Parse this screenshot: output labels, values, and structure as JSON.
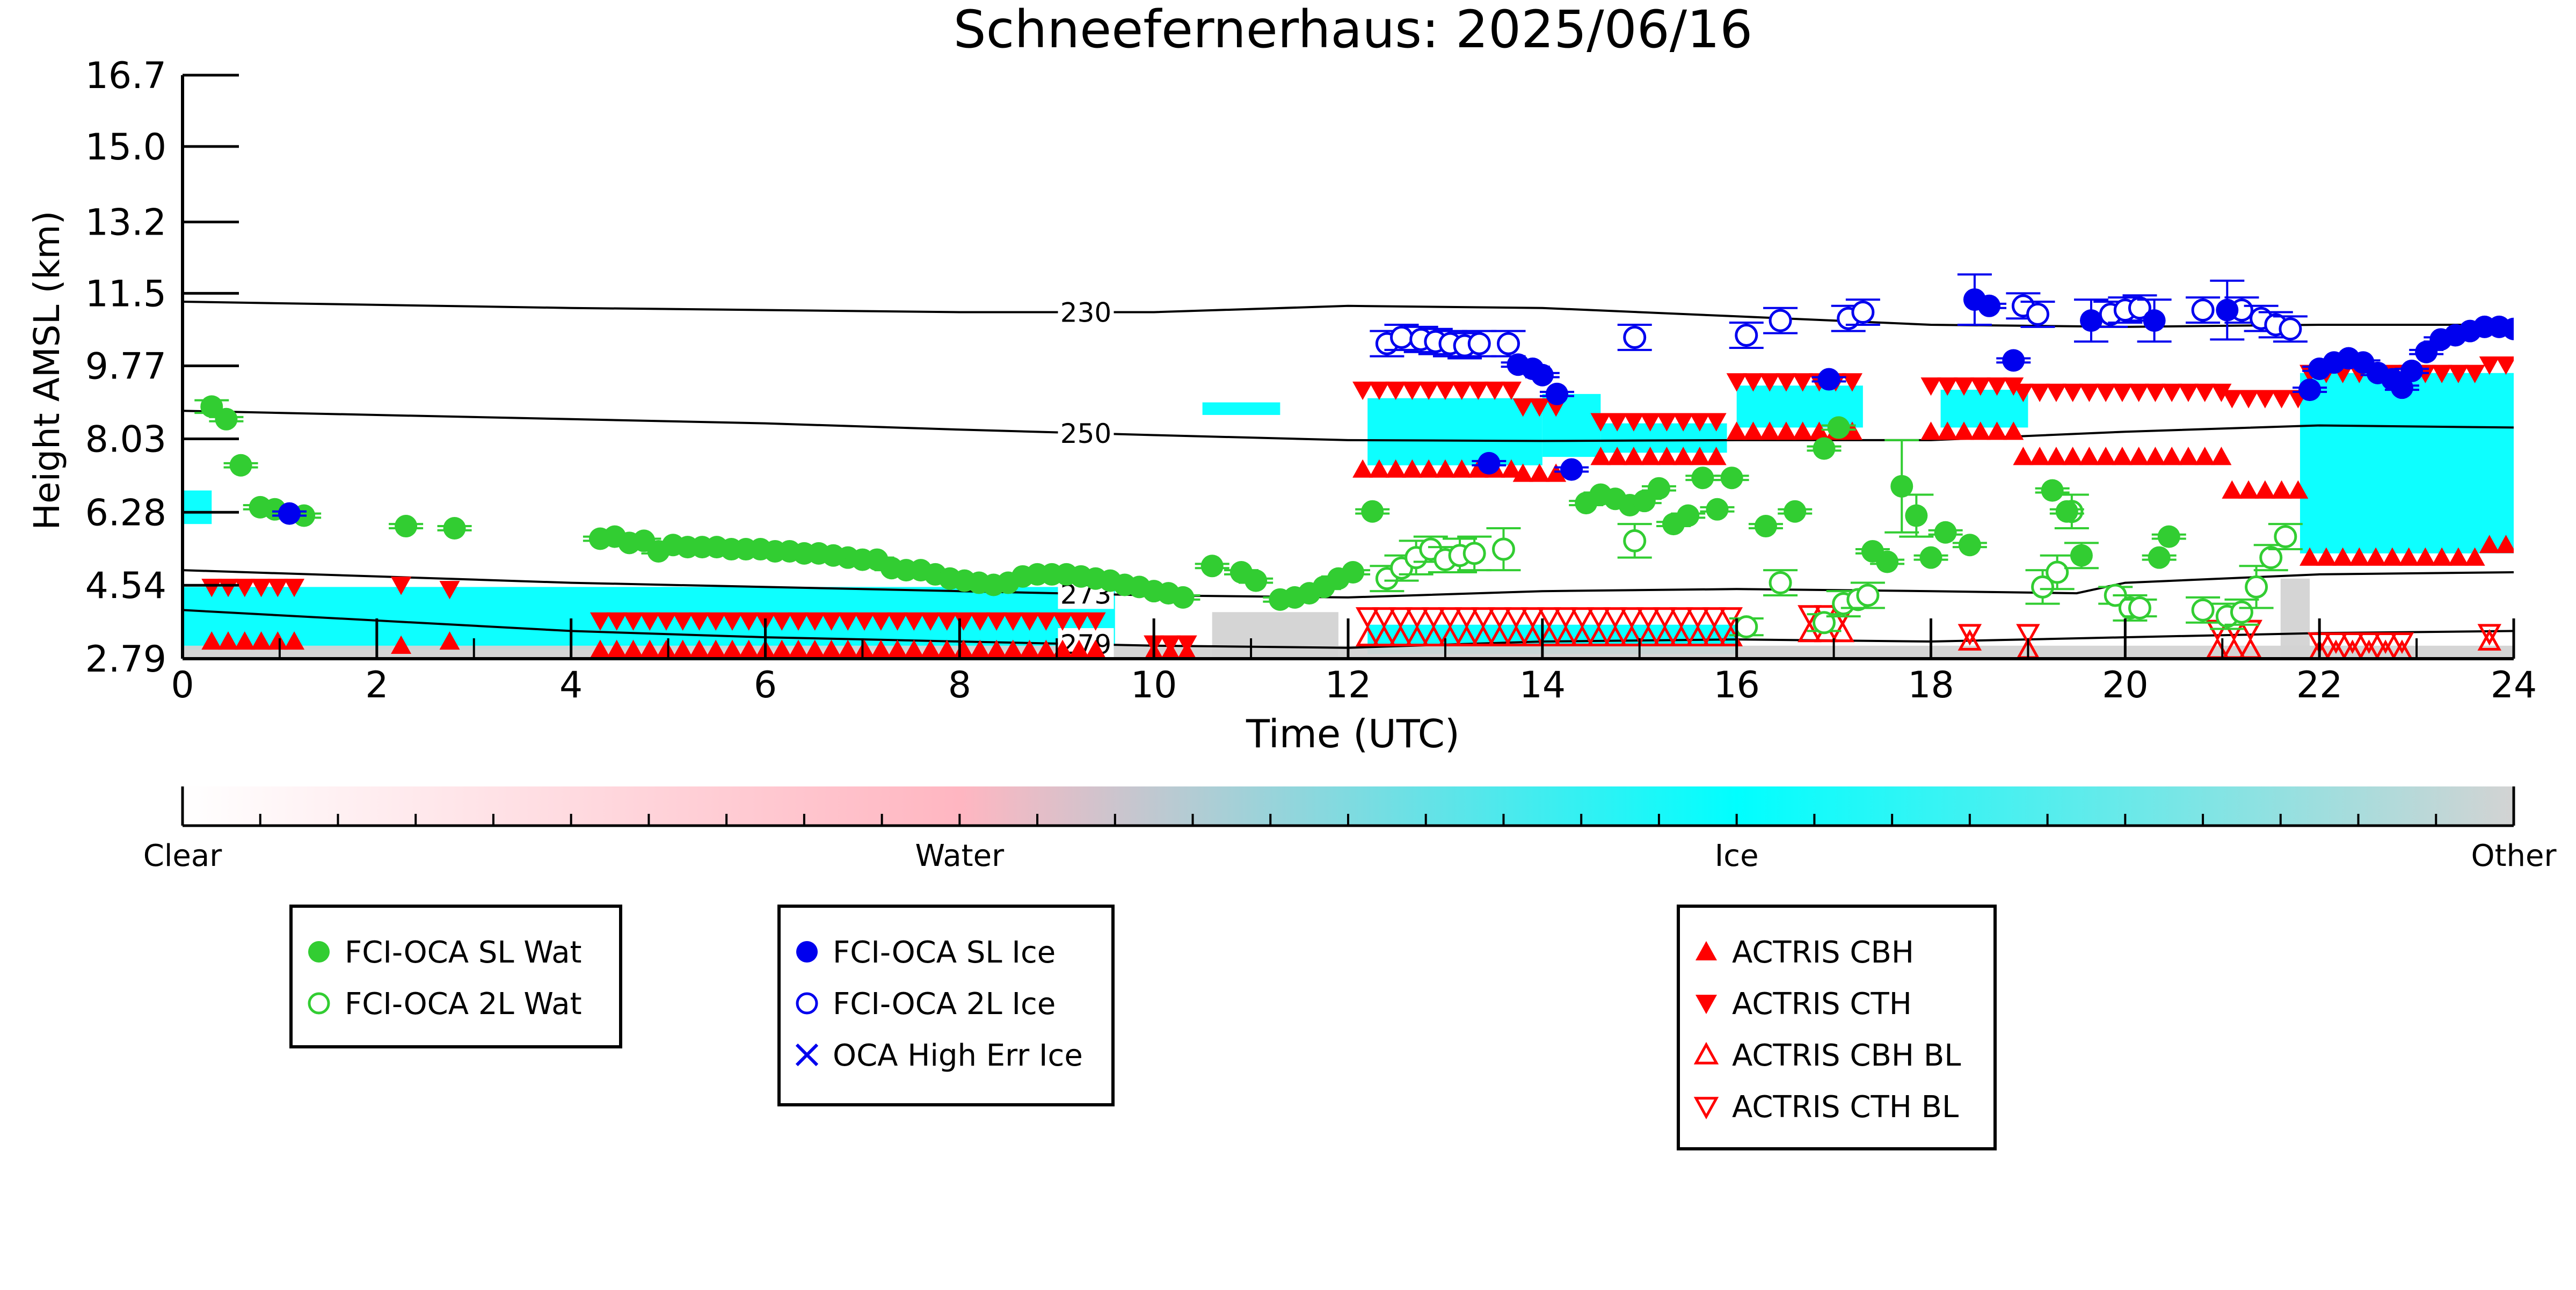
{
  "chart_data": {
    "type": "scatter",
    "title": "Schneefernerhaus: 2025/06/16",
    "xlabel": "Time (UTC)",
    "ylabel": "Height AMSL (km)",
    "xlim": [
      0,
      24
    ],
    "ylim": [
      2.79,
      16.7
    ],
    "xticks": [
      "0",
      "2",
      "4",
      "6",
      "8",
      "10",
      "12",
      "14",
      "16",
      "18",
      "20",
      "22",
      "24"
    ],
    "yticks": [
      "2.79",
      "4.54",
      "6.28",
      "8.03",
      "9.77",
      "11.5",
      "13.2",
      "15.0",
      "16.7"
    ],
    "isotherms": [
      {
        "label": "230",
        "label_x": 9.3,
        "points": [
          [
            0,
            11.3
          ],
          [
            4,
            11.15
          ],
          [
            8,
            11.05
          ],
          [
            10,
            11.05
          ],
          [
            12,
            11.2
          ],
          [
            14,
            11.15
          ],
          [
            16,
            10.95
          ],
          [
            18,
            10.75
          ],
          [
            20,
            10.7
          ],
          [
            22,
            10.75
          ],
          [
            24,
            10.75
          ]
        ]
      },
      {
        "label": "250",
        "label_x": 9.3,
        "points": [
          [
            0,
            8.7
          ],
          [
            2,
            8.6
          ],
          [
            4,
            8.5
          ],
          [
            6,
            8.4
          ],
          [
            8,
            8.25
          ],
          [
            10,
            8.12
          ],
          [
            12,
            8.0
          ],
          [
            14,
            7.98
          ],
          [
            16,
            8.0
          ],
          [
            18,
            8.0
          ],
          [
            20,
            8.2
          ],
          [
            22,
            8.35
          ],
          [
            24,
            8.3
          ]
        ]
      },
      {
        "label": "273",
        "label_x": 9.3,
        "points": [
          [
            0,
            4.9
          ],
          [
            2,
            4.75
          ],
          [
            4,
            4.6
          ],
          [
            6,
            4.5
          ],
          [
            8,
            4.4
          ],
          [
            10,
            4.3
          ],
          [
            12,
            4.25
          ],
          [
            14,
            4.4
          ],
          [
            16,
            4.45
          ],
          [
            18,
            4.4
          ],
          [
            19.5,
            4.35
          ],
          [
            20,
            4.6
          ],
          [
            22,
            4.8
          ],
          [
            24,
            4.85
          ]
        ]
      },
      {
        "label": "279",
        "label_x": 9.3,
        "points": [
          [
            0,
            3.95
          ],
          [
            2,
            3.7
          ],
          [
            4,
            3.45
          ],
          [
            6,
            3.3
          ],
          [
            8,
            3.2
          ],
          [
            10,
            3.1
          ],
          [
            12,
            3.05
          ],
          [
            14,
            3.2
          ],
          [
            16,
            3.25
          ],
          [
            18,
            3.2
          ],
          [
            20,
            3.3
          ],
          [
            22,
            3.4
          ],
          [
            24,
            3.45
          ]
        ]
      }
    ],
    "classification_colorbar": {
      "labels": [
        "Clear",
        "Water",
        "Ice",
        "Other"
      ],
      "colors": [
        "#ffffff",
        "#ffb6c1",
        "#00ffff",
        "#d3d3d3"
      ]
    },
    "series": [
      {
        "name": "FCI-OCA SL Wat",
        "marker": "filled-circle",
        "color": "#32cd32",
        "x": [
          0.3,
          0.45,
          0.6,
          0.8,
          0.95,
          1.25,
          2.3,
          2.8,
          4.3,
          4.45,
          4.6,
          4.75,
          4.9,
          5.05,
          5.2,
          5.35,
          5.5,
          5.65,
          5.8,
          5.95,
          6.1,
          6.25,
          6.4,
          6.55,
          6.7,
          6.85,
          7.0,
          7.15,
          7.3,
          7.45,
          7.6,
          7.75,
          7.9,
          8.05,
          8.2,
          8.35,
          8.5,
          8.65,
          8.8,
          8.95,
          9.1,
          9.25,
          9.4,
          9.55,
          9.7,
          9.85,
          10.0,
          10.15,
          10.3,
          10.6,
          10.9,
          11.05,
          11.3,
          11.45,
          11.6,
          11.75,
          11.9,
          12.05,
          12.25,
          14.45,
          14.6,
          14.75,
          14.9,
          15.05,
          15.2,
          15.35,
          15.5,
          15.65,
          15.8,
          15.95,
          16.3,
          16.6,
          16.9,
          17.05,
          17.4,
          17.55,
          17.7,
          17.85,
          18.0,
          18.15,
          18.4,
          19.25,
          19.4,
          19.55,
          20.35,
          20.45
        ],
        "y": [
          8.8,
          8.5,
          7.4,
          6.4,
          6.35,
          6.2,
          5.95,
          5.9,
          5.65,
          5.7,
          5.55,
          5.6,
          5.35,
          5.5,
          5.45,
          5.45,
          5.45,
          5.4,
          5.4,
          5.4,
          5.35,
          5.35,
          5.3,
          5.3,
          5.25,
          5.2,
          5.15,
          5.15,
          4.95,
          4.9,
          4.9,
          4.8,
          4.7,
          4.65,
          4.6,
          4.55,
          4.6,
          4.75,
          4.8,
          4.8,
          4.8,
          4.75,
          4.7,
          4.65,
          4.55,
          4.5,
          4.4,
          4.35,
          4.25,
          5.0,
          4.85,
          4.65,
          4.2,
          4.25,
          4.35,
          4.5,
          4.7,
          4.85,
          6.3,
          6.5,
          6.7,
          6.6,
          6.45,
          6.55,
          6.85,
          6.0,
          6.2,
          7.1,
          6.35,
          7.1,
          5.95,
          6.3,
          7.8,
          8.3,
          5.35,
          5.1,
          6.9,
          6.2,
          5.2,
          5.8,
          5.5,
          6.8,
          6.3,
          5.25,
          5.2,
          5.7
        ],
        "yerr": [
          0.15,
          0.05,
          0.05,
          0.05,
          0.05,
          0.05,
          0.05,
          0.05,
          0.05,
          0.05,
          0.05,
          0.05,
          0.05,
          0.05,
          0.05,
          0.05,
          0.05,
          0.05,
          0.05,
          0.05,
          0.05,
          0.05,
          0.05,
          0.05,
          0.05,
          0.05,
          0.05,
          0.05,
          0.05,
          0.05,
          0.05,
          0.05,
          0.05,
          0.05,
          0.05,
          0.05,
          0.05,
          0.05,
          0.05,
          0.05,
          0.05,
          0.05,
          0.05,
          0.05,
          0.05,
          0.05,
          0.05,
          0.05,
          0.05,
          0.05,
          0.05,
          0.05,
          0.05,
          0.05,
          0.05,
          0.05,
          0.05,
          0.05,
          0.05,
          0.05,
          0.05,
          0.05,
          0.05,
          0.05,
          0.05,
          0.05,
          0.05,
          0.05,
          0.05,
          0.05,
          0.05,
          0.05,
          0.05,
          0.05,
          0.05,
          0.05,
          1.1,
          0.5,
          0.05,
          0.05,
          0.05,
          0.05,
          0.05,
          0.3,
          0.05,
          0.05
        ]
      },
      {
        "name": "FCI-OCA 2L Wat",
        "marker": "open-circle",
        "color": "#32cd32",
        "x": [
          12.4,
          12.55,
          12.7,
          12.85,
          13.0,
          13.15,
          13.3,
          13.6,
          14.95,
          16.1,
          16.45,
          16.9,
          17.1,
          17.25,
          17.35,
          19.15,
          19.3,
          19.45,
          19.9,
          20.05,
          20.15,
          20.8,
          21.05,
          21.2,
          21.35,
          21.5,
          21.65
        ],
        "y": [
          4.7,
          4.95,
          5.2,
          5.4,
          5.15,
          5.25,
          5.3,
          5.4,
          5.6,
          3.55,
          4.6,
          3.65,
          4.1,
          4.2,
          4.3,
          4.5,
          4.85,
          6.3,
          4.3,
          4.0,
          4.0,
          3.95,
          3.8,
          3.9,
          4.5,
          5.2,
          5.7
        ],
        "yerr": [
          0.3,
          0.3,
          0.4,
          0.3,
          0.3,
          0.4,
          0.4,
          0.5,
          0.4,
          0.2,
          0.3,
          0.2,
          0.3,
          0.2,
          0.3,
          0.4,
          0.4,
          0.4,
          0.2,
          0.3,
          0.2,
          0.3,
          0.3,
          0.3,
          0.5,
          0.3,
          0.3
        ]
      },
      {
        "name": "FCI-OCA SL Ice",
        "marker": "filled-circle",
        "color": "#0000ee",
        "x": [
          1.1,
          13.45,
          13.75,
          13.9,
          14.0,
          14.15,
          14.3,
          16.95,
          18.45,
          18.6,
          18.85,
          19.65,
          20.3,
          21.05,
          21.9,
          22.0,
          22.15,
          22.3,
          22.45,
          22.6,
          22.75,
          22.85,
          22.95,
          23.1,
          23.25,
          23.4,
          23.55,
          23.7,
          23.85,
          24.0
        ],
        "y": [
          6.25,
          7.45,
          9.8,
          9.7,
          9.55,
          9.1,
          7.3,
          9.45,
          11.35,
          11.2,
          9.9,
          10.85,
          10.85,
          11.1,
          9.2,
          9.7,
          9.85,
          9.95,
          9.85,
          9.6,
          9.45,
          9.25,
          9.65,
          10.1,
          10.4,
          10.5,
          10.6,
          10.7,
          10.7,
          10.65
        ],
        "yerr": [
          0.05,
          0.05,
          0.05,
          0.05,
          0.05,
          0.05,
          0.05,
          0.05,
          0.6,
          0.05,
          0.05,
          0.5,
          0.5,
          0.7,
          0.05,
          0.05,
          0.05,
          0.05,
          0.05,
          0.05,
          0.05,
          0.05,
          0.05,
          0.05,
          0.05,
          0.05,
          0.05,
          0.05,
          0.05,
          0.05
        ]
      },
      {
        "name": "FCI-OCA 2L Ice",
        "marker": "open-circle",
        "color": "#0000ee",
        "x": [
          12.4,
          12.55,
          12.75,
          12.9,
          13.05,
          13.2,
          13.35,
          13.65,
          14.95,
          16.1,
          16.45,
          17.15,
          17.3,
          18.95,
          19.1,
          19.85,
          20.0,
          20.15,
          20.8,
          21.2,
          21.4,
          21.55,
          21.7
        ],
        "y": [
          10.3,
          10.45,
          10.4,
          10.35,
          10.3,
          10.25,
          10.3,
          10.3,
          10.45,
          10.5,
          10.85,
          10.9,
          11.05,
          11.2,
          11.0,
          11.0,
          11.1,
          11.15,
          11.1,
          11.1,
          10.9,
          10.75,
          10.65
        ],
        "yerr": [
          0.3,
          0.3,
          0.3,
          0.3,
          0.3,
          0.3,
          0.3,
          0.3,
          0.3,
          0.3,
          0.3,
          0.3,
          0.3,
          0.3,
          0.3,
          0.3,
          0.3,
          0.3,
          0.3,
          0.3,
          0.3,
          0.3,
          0.3
        ]
      },
      {
        "name": "OCA High Err Ice",
        "marker": "x",
        "color": "#0000ee",
        "x": [],
        "y": []
      },
      {
        "name": "ACTRIS CBH",
        "marker": "triangle-up",
        "color": "#ff0000",
        "band": "cbh"
      },
      {
        "name": "ACTRIS CTH",
        "marker": "triangle-down",
        "color": "#ff0000",
        "band": "cth"
      },
      {
        "name": "ACTRIS CBH BL",
        "marker": "open-triangle-up",
        "color": "#ff0000"
      },
      {
        "name": "ACTRIS CTH BL",
        "marker": "open-triangle-down",
        "color": "#ff0000"
      }
    ],
    "actris_layers": [
      {
        "x0": 0.3,
        "x1": 1.3,
        "base": 3.2,
        "top": 4.5
      },
      {
        "x0": 2.25,
        "x1": 2.3,
        "base": 3.1,
        "top": 4.55
      },
      {
        "x0": 2.75,
        "x1": 2.8,
        "base": 3.2,
        "top": 4.45
      },
      {
        "x0": 4.3,
        "x1": 9.4,
        "base": 3.0,
        "top": 3.7
      },
      {
        "x0": 10.0,
        "x1": 10.4,
        "base": 2.95,
        "top": 3.15
      },
      {
        "x0": 12.15,
        "x1": 13.75,
        "base": 7.3,
        "top": 9.2
      },
      {
        "x0": 13.8,
        "x1": 14.3,
        "base": 7.2,
        "top": 8.8
      },
      {
        "x0": 14.6,
        "x1": 15.9,
        "base": 7.6,
        "top": 8.45
      },
      {
        "x0": 16.0,
        "x1": 17.3,
        "base": 8.2,
        "top": 9.4
      },
      {
        "x0": 18.0,
        "x1": 18.9,
        "base": 8.2,
        "top": 9.3
      },
      {
        "x0": 18.95,
        "x1": 21.1,
        "base": 7.6,
        "top": 9.15
      },
      {
        "x0": 21.1,
        "x1": 21.85,
        "base": 6.8,
        "top": 9.0
      },
      {
        "x0": 21.9,
        "x1": 23.7,
        "base": 5.2,
        "top": 9.6
      },
      {
        "x0": 23.75,
        "x1": 24.0,
        "base": 5.5,
        "top": 9.8
      }
    ],
    "actris_bl": [
      {
        "x0": 12.2,
        "x1": 15.95,
        "base": 3.3,
        "top": 3.8
      },
      {
        "x0": 16.75,
        "x1": 17.1,
        "base": 3.4,
        "top": 3.85
      },
      {
        "x0": 18.4,
        "x1": 18.5,
        "base": 3.2,
        "top": 3.4
      },
      {
        "x0": 19.0,
        "x1": 19.1,
        "base": 3.0,
        "top": 3.4
      },
      {
        "x0": 20.95,
        "x1": 21.3,
        "base": 3.0,
        "top": 3.5
      },
      {
        "x0": 22.0,
        "x1": 22.9,
        "base": 2.95,
        "top": 3.2
      },
      {
        "x0": 23.75,
        "x1": 23.8,
        "base": 3.2,
        "top": 3.4
      }
    ],
    "cloud_fields": [
      {
        "class": "Ice",
        "x0": 0.0,
        "x1": 0.3,
        "base": 6.0,
        "top": 6.8
      },
      {
        "class": "Ice",
        "x0": 0.0,
        "x1": 9.6,
        "base": 3.0,
        "top": 4.5
      },
      {
        "class": "Ice",
        "x0": 10.5,
        "x1": 11.3,
        "base": 8.6,
        "top": 8.9
      },
      {
        "class": "Ice",
        "x0": 12.2,
        "x1": 14.0,
        "base": 7.4,
        "top": 9.0
      },
      {
        "class": "Ice",
        "x0": 14.0,
        "x1": 14.6,
        "base": 7.6,
        "top": 9.1
      },
      {
        "class": "Ice",
        "x0": 14.6,
        "x1": 15.9,
        "base": 7.7,
        "top": 8.4
      },
      {
        "class": "Ice",
        "x0": 16.0,
        "x1": 17.3,
        "base": 8.3,
        "top": 9.3
      },
      {
        "class": "Ice",
        "x0": 18.1,
        "x1": 19.0,
        "base": 8.3,
        "top": 9.2
      },
      {
        "class": "Ice",
        "x0": 21.8,
        "x1": 24.0,
        "base": 5.3,
        "top": 9.6
      },
      {
        "class": "Ice",
        "x0": 12.2,
        "x1": 16.0,
        "base": 2.9,
        "top": 3.6
      },
      {
        "class": "Other",
        "x0": 0.0,
        "x1": 24.0,
        "base": 2.79,
        "top": 3.1
      },
      {
        "class": "Other",
        "x0": 10.6,
        "x1": 11.9,
        "base": 2.79,
        "top": 3.9
      },
      {
        "class": "Other",
        "x0": 21.6,
        "x1": 21.9,
        "base": 2.79,
        "top": 4.7
      }
    ],
    "legend_groups": [
      [
        "FCI-OCA SL Wat",
        "FCI-OCA 2L Wat"
      ],
      [
        "FCI-OCA SL Ice",
        "FCI-OCA 2L Ice",
        "OCA High Err Ice"
      ],
      [
        "ACTRIS CBH",
        "ACTRIS CTH",
        "ACTRIS CBH BL",
        "ACTRIS CTH BL"
      ]
    ],
    "legend_placement": "below",
    "grid": false
  }
}
